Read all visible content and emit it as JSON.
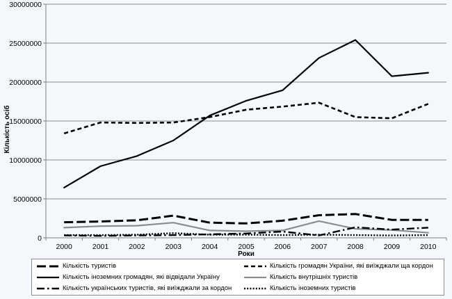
{
  "chart_data": {
    "type": "line",
    "xlabel": "Роки",
    "ylabel": "Кількість осіб",
    "x": [
      2000,
      2001,
      2002,
      2003,
      2004,
      2005,
      2006,
      2007,
      2008,
      2009,
      2010
    ],
    "ylim": [
      0,
      30000000
    ],
    "yticks": [
      "0",
      "5000000",
      "10000000",
      "15000000",
      "20000000",
      "25000000",
      "30000000"
    ],
    "grid": "horizontal",
    "legend_position": "bottom",
    "series": [
      {
        "name": "Кількість туристів",
        "style": "long-dash",
        "color": "#000000",
        "values": [
          2000000,
          2100000,
          2250000,
          2850000,
          1950000,
          1850000,
          2200000,
          2900000,
          3050000,
          2300000,
          2300000
        ]
      },
      {
        "name": "Кількість громадян України, які виїжджали ща кордон",
        "style": "short-dash",
        "color": "#000000",
        "values": [
          13400000,
          14800000,
          14750000,
          14800000,
          15500000,
          16450000,
          16850000,
          17350000,
          15500000,
          15350000,
          17200000
        ]
      },
      {
        "name": "Кількість іноземних громадян, які відвідали Україну",
        "style": "solid",
        "color": "#000000",
        "values": [
          6450000,
          9200000,
          10500000,
          12500000,
          15700000,
          17600000,
          18950000,
          23100000,
          25400000,
          20750000,
          21200000
        ]
      },
      {
        "name": "Кількість внутрішніх туристів",
        "style": "solid",
        "color": "#8c8c8c",
        "values": [
          1300000,
          1500000,
          1550000,
          1950000,
          950000,
          850000,
          950000,
          2150000,
          1150000,
          1000000,
          650000
        ]
      },
      {
        "name": "Кількість українських туристів, які виїжджали  за кордон",
        "style": "dash-dot",
        "color": "#000000",
        "values": [
          300000,
          250000,
          300000,
          350000,
          450000,
          550000,
          800000,
          300000,
          1350000,
          1050000,
          1300000
        ]
      },
      {
        "name": "Кількість іноземних туристів",
        "style": "dotted",
        "color": "#000000",
        "values": [
          350000,
          350000,
          400000,
          600000,
          400000,
          400000,
          350000,
          400000,
          350000,
          300000,
          350000
        ]
      }
    ]
  }
}
